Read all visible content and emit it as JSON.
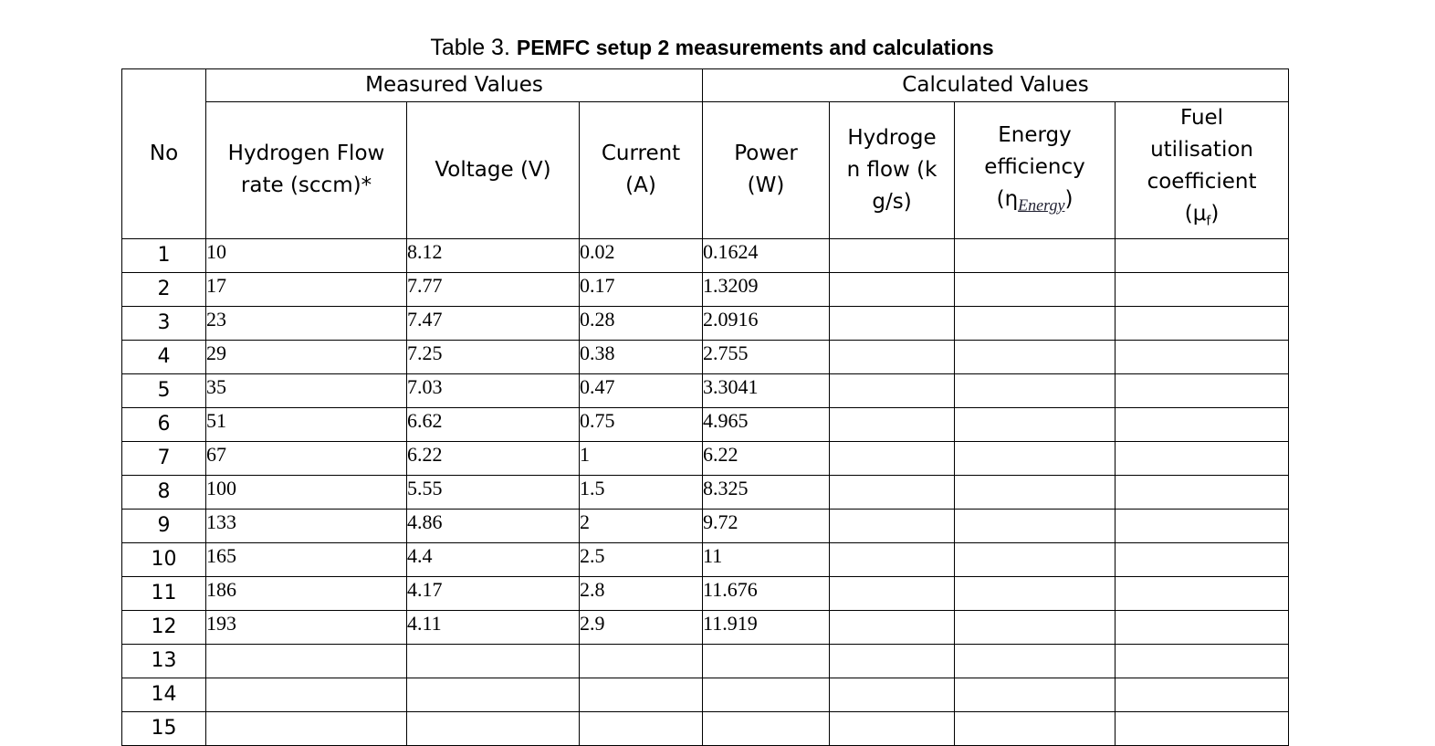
{
  "title": {
    "label": "Table 3.",
    "text": "PEMFC setup 2 measurements and calculations"
  },
  "table": {
    "no_header": "No",
    "groups": [
      "Measured Values",
      "Calculated Values"
    ],
    "columns": [
      "Hydrogen Flow rate (sccm)*",
      "Voltage (V)",
      "Current (A)",
      "Power (W)",
      "Hydrogen flow (kg/s)"
    ],
    "energy_header": {
      "text": "Energy efficiency (",
      "symbol": "η",
      "subscript": "Energy",
      "close": ")"
    },
    "fuel_header": {
      "text": "Fuel utilisation coefficient (μ",
      "subscript": "f",
      "close": ")"
    },
    "rows": [
      {
        "no": "1",
        "values": [
          "10",
          "8.12",
          "0.02",
          "0.1624"
        ]
      },
      {
        "no": "2",
        "values": [
          "17",
          "7.77",
          "0.17",
          "1.3209"
        ]
      },
      {
        "no": "3",
        "values": [
          "23",
          "7.47",
          "0.28",
          "2.0916"
        ]
      },
      {
        "no": "4",
        "values": [
          "29",
          "7.25",
          "0.38",
          "2.755"
        ]
      },
      {
        "no": "5",
        "values": [
          "35",
          "7.03",
          "0.47",
          "3.3041"
        ]
      },
      {
        "no": "6",
        "values": [
          "51",
          "6.62",
          "0.75",
          "4.965"
        ]
      },
      {
        "no": "7",
        "values": [
          "67",
          "6.22",
          "1",
          "6.22"
        ]
      },
      {
        "no": "8",
        "values": [
          "100",
          "5.55",
          "1.5",
          "8.325"
        ]
      },
      {
        "no": "9",
        "values": [
          "133",
          "4.86",
          "2",
          "9.72"
        ]
      },
      {
        "no": "10",
        "values": [
          "165",
          "4.4",
          "2.5",
          "11"
        ]
      },
      {
        "no": "11",
        "values": [
          "186",
          "4.17",
          "2.8",
          "11.676"
        ]
      },
      {
        "no": "12",
        "values": [
          "193",
          "4.11",
          "2.9",
          "11.919"
        ]
      },
      {
        "no": "13"
      },
      {
        "no": "14"
      },
      {
        "no": "15"
      }
    ]
  }
}
